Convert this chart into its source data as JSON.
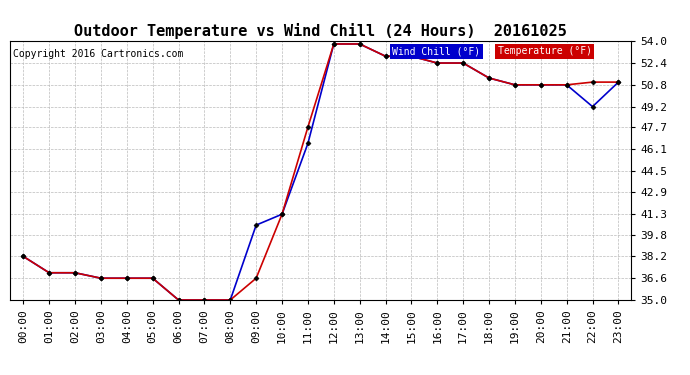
{
  "title": "Outdoor Temperature vs Wind Chill (24 Hours)  20161025",
  "copyright": "Copyright 2016 Cartronics.com",
  "background_color": "#ffffff",
  "plot_bg_color": "#ffffff",
  "grid_color": "#bbbbbb",
  "x_labels": [
    "00:00",
    "01:00",
    "02:00",
    "03:00",
    "04:00",
    "05:00",
    "06:00",
    "07:00",
    "08:00",
    "09:00",
    "10:00",
    "11:00",
    "12:00",
    "13:00",
    "14:00",
    "15:00",
    "16:00",
    "17:00",
    "18:00",
    "19:00",
    "20:00",
    "21:00",
    "22:00",
    "23:00"
  ],
  "temperature": [
    38.2,
    37.0,
    37.0,
    36.6,
    36.6,
    36.6,
    35.0,
    35.0,
    35.0,
    36.6,
    41.3,
    47.7,
    53.8,
    53.8,
    52.9,
    52.9,
    52.4,
    52.4,
    51.3,
    50.8,
    50.8,
    50.8,
    51.0,
    51.0
  ],
  "wind_chill": [
    38.2,
    37.0,
    37.0,
    36.6,
    36.6,
    36.6,
    35.0,
    35.0,
    35.0,
    40.5,
    41.3,
    46.5,
    53.8,
    53.8,
    52.9,
    52.9,
    52.4,
    52.4,
    51.3,
    50.8,
    50.8,
    50.8,
    49.2,
    51.0
  ],
  "ylim": [
    35.0,
    54.0
  ],
  "yticks": [
    35.0,
    36.6,
    38.2,
    39.8,
    41.3,
    42.9,
    44.5,
    46.1,
    47.7,
    49.2,
    50.8,
    52.4,
    54.0
  ],
  "temp_color": "#cc0000",
  "wind_chill_color": "#0000cc",
  "legend_wind_chill_bg": "#0000cc",
  "legend_temp_bg": "#cc0000",
  "legend_text_color": "#ffffff",
  "title_fontsize": 11,
  "copyright_fontsize": 7,
  "tick_fontsize": 8
}
